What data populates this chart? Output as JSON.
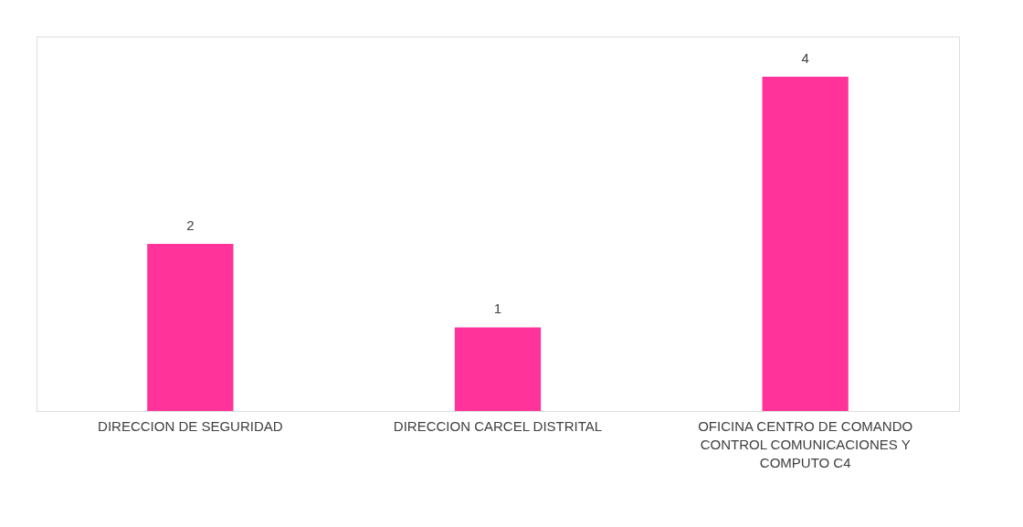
{
  "chart_data": {
    "type": "bar",
    "categories": [
      "DIRECCION DE SEGURIDAD",
      "DIRECCION CARCEL DISTRITAL",
      "OFICINA CENTRO DE COMANDO CONTROL COMUNICACIONES Y COMPUTO C4"
    ],
    "values": [
      2,
      1,
      4
    ],
    "color": "#ff3399",
    "data_labels": true
  }
}
